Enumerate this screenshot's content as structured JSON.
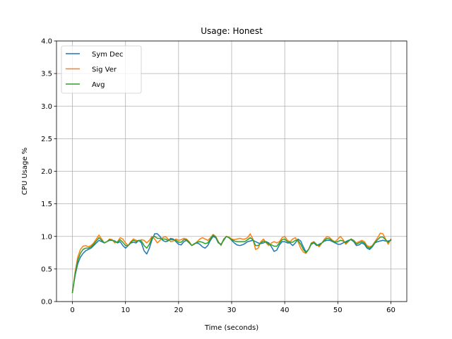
{
  "chart_data": {
    "type": "line",
    "title": "Usage: Honest",
    "xlabel": "Time (seconds)",
    "ylabel": "CPU Usage %",
    "xlim": [
      -3,
      63
    ],
    "ylim": [
      0,
      4.0
    ],
    "xticks": [
      0,
      10,
      20,
      30,
      40,
      50,
      60
    ],
    "yticks": [
      "0.0",
      "0.5",
      "1.0",
      "1.5",
      "2.0",
      "2.5",
      "3.0",
      "3.5",
      "4.0"
    ],
    "grid": true,
    "legend_placement": "top-left",
    "x": [
      0,
      0.5,
      1,
      1.5,
      2,
      2.5,
      3,
      3.5,
      4,
      4.5,
      5,
      5.5,
      6,
      6.5,
      7,
      7.5,
      8,
      8.5,
      9,
      9.5,
      10,
      10.5,
      11,
      11.5,
      12,
      12.5,
      13,
      13.5,
      14,
      14.5,
      15,
      15.5,
      16,
      16.5,
      17,
      17.5,
      18,
      18.5,
      19,
      19.5,
      20,
      20.5,
      21,
      21.5,
      22,
      22.5,
      23,
      23.5,
      24,
      24.5,
      25,
      25.5,
      26,
      26.5,
      27,
      27.5,
      28,
      28.5,
      29,
      29.5,
      30,
      30.5,
      31,
      31.5,
      32,
      32.5,
      33,
      33.5,
      34,
      34.5,
      35,
      35.5,
      36,
      36.5,
      37,
      37.5,
      38,
      38.5,
      39,
      39.5,
      40,
      40.5,
      41,
      41.5,
      42,
      42.5,
      43,
      43.5,
      44,
      44.5,
      45,
      45.5,
      46,
      46.5,
      47,
      47.5,
      48,
      48.5,
      49,
      49.5,
      50,
      50.5,
      51,
      51.5,
      52,
      52.5,
      53,
      53.5,
      54,
      54.5,
      55,
      55.5,
      56,
      56.5,
      57,
      57.5,
      58,
      58.5,
      59,
      59.5,
      60
    ],
    "series": [
      {
        "name": "Sym Dec",
        "color": "#1f77b4",
        "values": [
          0.14,
          0.4,
          0.58,
          0.68,
          0.74,
          0.78,
          0.8,
          0.82,
          0.86,
          0.9,
          0.94,
          0.92,
          0.9,
          0.92,
          0.94,
          0.94,
          0.93,
          0.9,
          0.92,
          0.86,
          0.82,
          0.86,
          0.9,
          0.91,
          0.9,
          0.94,
          0.9,
          0.78,
          0.73,
          0.82,
          0.95,
          1.04,
          1.04,
          1.0,
          0.94,
          0.92,
          0.93,
          0.97,
          0.96,
          0.92,
          0.88,
          0.87,
          0.92,
          0.94,
          0.9,
          0.86,
          0.89,
          0.9,
          0.88,
          0.84,
          0.82,
          0.86,
          0.94,
          1.0,
          0.98,
          0.9,
          0.88,
          0.94,
          1.0,
          0.98,
          0.94,
          0.9,
          0.87,
          0.86,
          0.87,
          0.89,
          0.92,
          0.93,
          0.94,
          0.92,
          0.9,
          0.89,
          0.9,
          0.92,
          0.9,
          0.84,
          0.77,
          0.79,
          0.87,
          0.92,
          0.92,
          0.9,
          0.9,
          0.86,
          0.9,
          0.96,
          0.93,
          0.84,
          0.76,
          0.8,
          0.88,
          0.9,
          0.86,
          0.88,
          0.9,
          0.93,
          0.94,
          0.94,
          0.92,
          0.9,
          0.88,
          0.88,
          0.9,
          0.92,
          0.94,
          0.95,
          0.92,
          0.86,
          0.87,
          0.9,
          0.88,
          0.82,
          0.8,
          0.84,
          0.9,
          0.92,
          0.93,
          0.94,
          0.93,
          0.93,
          0.94
        ]
      },
      {
        "name": "Sig Ver",
        "color": "#ff7f0e",
        "values": [
          0.14,
          0.45,
          0.68,
          0.8,
          0.85,
          0.86,
          0.84,
          0.86,
          0.9,
          0.96,
          1.02,
          0.96,
          0.9,
          0.92,
          0.96,
          0.95,
          0.9,
          0.92,
          0.98,
          0.96,
          0.9,
          0.86,
          0.92,
          0.96,
          0.94,
          0.93,
          0.95,
          0.94,
          0.9,
          0.94,
          1.0,
          0.96,
          0.9,
          0.94,
          0.98,
          1.0,
          0.96,
          0.92,
          0.93,
          0.96,
          0.94,
          0.95,
          0.97,
          0.96,
          0.92,
          0.86,
          0.88,
          0.92,
          0.96,
          0.98,
          0.96,
          0.94,
          0.98,
          1.03,
          1.0,
          0.92,
          0.86,
          0.96,
          1.0,
          0.99,
          0.96,
          0.95,
          0.96,
          0.97,
          0.96,
          0.96,
          0.98,
          1.04,
          0.96,
          0.8,
          0.82,
          0.92,
          0.96,
          0.9,
          0.86,
          0.9,
          0.92,
          0.9,
          0.92,
          0.98,
          1.0,
          0.94,
          0.92,
          0.96,
          0.98,
          0.92,
          0.82,
          0.76,
          0.74,
          0.8,
          0.9,
          0.92,
          0.88,
          0.84,
          0.9,
          0.96,
          1.0,
          0.98,
          0.94,
          0.92,
          0.96,
          1.0,
          0.95,
          0.88,
          0.92,
          0.96,
          0.94,
          0.9,
          0.92,
          0.94,
          0.92,
          0.86,
          0.84,
          0.86,
          0.92,
          0.98,
          1.05,
          1.04,
          0.96,
          0.88,
          0.96
        ]
      },
      {
        "name": "Avg",
        "color": "#2ca02c",
        "values": [
          0.14,
          0.42,
          0.63,
          0.74,
          0.8,
          0.82,
          0.82,
          0.84,
          0.88,
          0.93,
          0.98,
          0.94,
          0.9,
          0.92,
          0.95,
          0.94,
          0.92,
          0.91,
          0.95,
          0.91,
          0.86,
          0.86,
          0.91,
          0.94,
          0.92,
          0.94,
          0.93,
          0.86,
          0.82,
          0.88,
          0.98,
          1.0,
          0.97,
          0.97,
          0.96,
          0.96,
          0.94,
          0.95,
          0.95,
          0.94,
          0.91,
          0.91,
          0.95,
          0.95,
          0.91,
          0.86,
          0.89,
          0.91,
          0.92,
          0.91,
          0.89,
          0.9,
          0.96,
          1.02,
          0.99,
          0.91,
          0.87,
          0.95,
          1.0,
          0.98,
          0.95,
          0.93,
          0.92,
          0.92,
          0.92,
          0.92,
          0.95,
          0.98,
          0.95,
          0.86,
          0.86,
          0.9,
          0.93,
          0.91,
          0.88,
          0.87,
          0.85,
          0.85,
          0.9,
          0.95,
          0.96,
          0.92,
          0.91,
          0.91,
          0.94,
          0.94,
          0.88,
          0.8,
          0.75,
          0.8,
          0.89,
          0.91,
          0.87,
          0.86,
          0.9,
          0.94,
          0.97,
          0.96,
          0.93,
          0.91,
          0.92,
          0.94,
          0.93,
          0.9,
          0.93,
          0.96,
          0.93,
          0.88,
          0.9,
          0.92,
          0.9,
          0.84,
          0.82,
          0.85,
          0.91,
          0.95,
          0.99,
          0.99,
          0.95,
          0.91,
          0.95
        ]
      }
    ]
  }
}
